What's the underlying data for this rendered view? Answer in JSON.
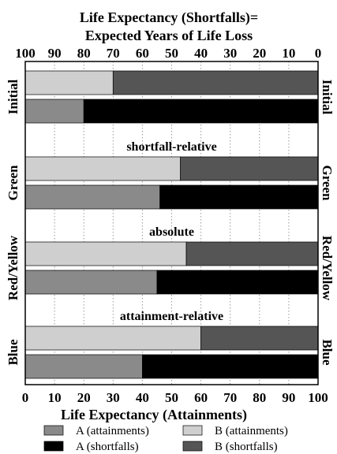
{
  "chart_data": {
    "type": "bar",
    "orientation": "horizontal",
    "stacked": true,
    "title_top": [
      "Life Expectancy (Shortfalls)=",
      "Expected Years of Life Loss"
    ],
    "xlabel": "Life Expectancy (Attainments)",
    "xlim": [
      0,
      100
    ],
    "ticks": [
      0,
      10,
      20,
      30,
      40,
      50,
      60,
      70,
      80,
      90,
      100
    ],
    "top_axis_reversed": true,
    "grid": "vertical dotted",
    "groups": [
      {
        "label": "Initial",
        "annotation": "",
        "A_attainment": 20,
        "B_attainment": 30
      },
      {
        "label": "Green",
        "annotation": "shortfall-relative",
        "A_attainment": 46,
        "B_attainment": 53
      },
      {
        "label": "Red/Yellow",
        "annotation": "absolute",
        "A_attainment": 45,
        "B_attainment": 55
      },
      {
        "label": "Blue",
        "annotation": "attainment-relative",
        "A_attainment": 40,
        "B_attainment": 60
      }
    ],
    "legend": [
      {
        "name": "A (attainments)",
        "color": "#8a8a8a"
      },
      {
        "name": "B (attainments)",
        "color": "#cfcfcf"
      },
      {
        "name": "A (shortfalls)",
        "color": "#000000"
      },
      {
        "name": "B (shortfalls)",
        "color": "#555555"
      }
    ],
    "legend_position": "bottom"
  }
}
